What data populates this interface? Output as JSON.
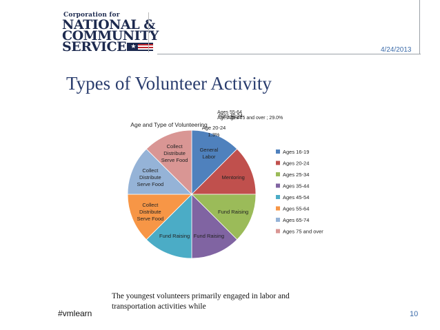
{
  "header": {
    "logo": {
      "line1": "Corporation for",
      "line2": "NATIONAL &",
      "line3": "COMMUNITY",
      "line4": "SERVICE",
      "stars": "★★★"
    },
    "date": "4/24/2013"
  },
  "slide": {
    "title": "Types of Volunteer Activity",
    "caption_line1": "The youngest volunteers primarily engaged in labor and",
    "caption_line2": "transportation activities while",
    "hashtag": "#vmlearn",
    "page_number": "10"
  },
  "chart_data": {
    "type": "pie",
    "title": "Age and Type of Volunteering",
    "series": [
      {
        "name": "Ages 16-19",
        "value": 12.5,
        "label": "General Labor",
        "color": "#4f81bd"
      },
      {
        "name": "Ages 20-24",
        "value": 12.5,
        "label": "Mentoring",
        "color": "#c0504d"
      },
      {
        "name": "Ages 25-34",
        "value": 12.5,
        "label": "Fund Raising",
        "color": "#9bbb59"
      },
      {
        "name": "Ages 35-44",
        "value": 12.5,
        "label": "Fund Raising",
        "color": "#8064a2"
      },
      {
        "name": "Ages 45-54",
        "value": 12.5,
        "label": "Fund Raising",
        "color": "#4bacc6"
      },
      {
        "name": "Ages 55-64",
        "value": 12.5,
        "label": "Collect Distribute Serve Food",
        "color": "#f79646"
      },
      {
        "name": "Ages 65-74",
        "value": 12.5,
        "label": "Collect Distribute Serve Food",
        "color": "#95b3d7"
      },
      {
        "name": "Ages 75 and over",
        "value": 12.5,
        "label": "Collect Distribute Serve Food",
        "color": "#d99694"
      }
    ],
    "overlap_labels": [
      "Age 20-24",
      "1.3%",
      "Ages 55-64",
      "Ages 35-44",
      "Ages 45-54",
      "Ages 75 and over ; 29.0%"
    ],
    "legend_position": "right"
  }
}
